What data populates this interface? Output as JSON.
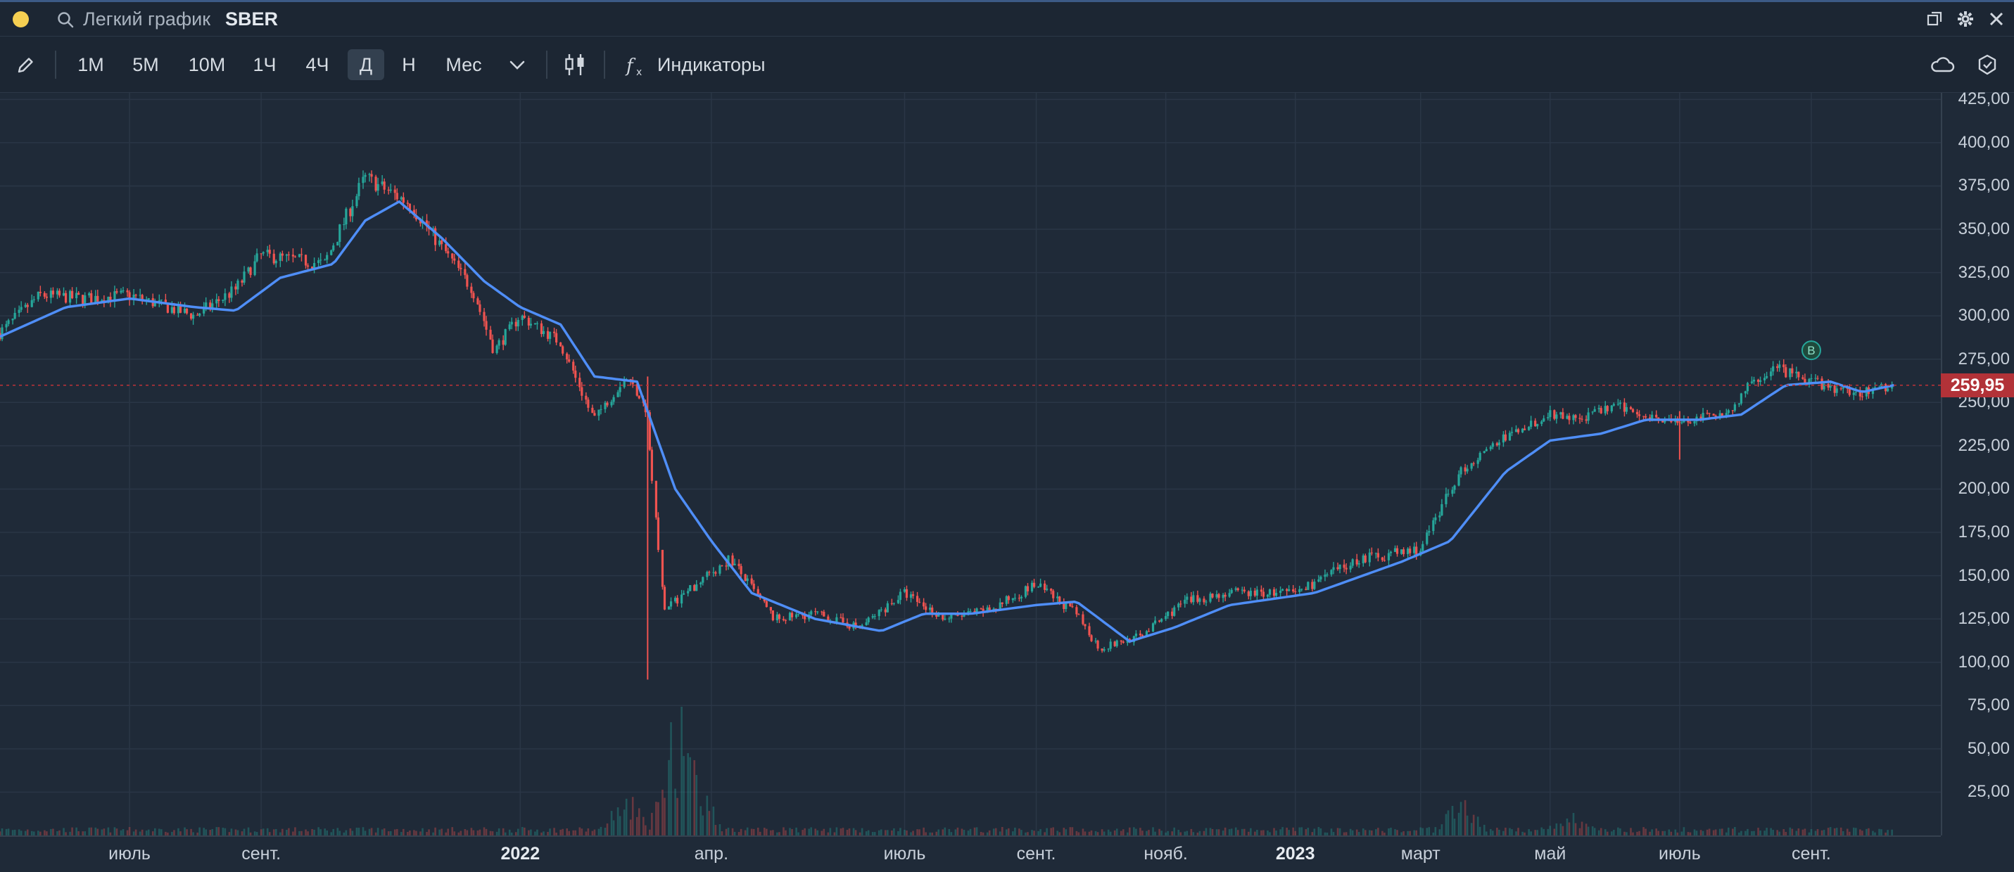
{
  "titlebar": {
    "search_text": "Легкий график",
    "ticker": "SBER",
    "icons": [
      "popout-icon",
      "gear-icon",
      "close-icon"
    ]
  },
  "toolbar": {
    "timeframes": [
      "1М",
      "5М",
      "10М",
      "1Ч",
      "4Ч",
      "Д",
      "Н",
      "Мес"
    ],
    "active_timeframe": "Д",
    "indicators_label": "Индикаторы"
  },
  "colors": {
    "background": "#1f2a38",
    "grid": "#2a3646",
    "up": "#26a69a",
    "down": "#ef5350",
    "ma": "#4f8ef7",
    "last_price": "#b23238"
  },
  "chart_data": {
    "type": "candlestick",
    "ticker": "SBER",
    "ylim": [
      0,
      430
    ],
    "y_ticks": [
      "425,00",
      "400,00",
      "375,00",
      "350,00",
      "325,00",
      "300,00",
      "275,00",
      "250,00",
      "225,00",
      "200,00",
      "175,00",
      "150,00",
      "125,00",
      "100,00",
      "75,00",
      "50,00",
      "25,00"
    ],
    "x_ticks": [
      {
        "label": "июль",
        "date": "2021-07-01",
        "bold": false
      },
      {
        "label": "сент.",
        "date": "2021-09-01",
        "bold": false
      },
      {
        "label": "2022",
        "date": "2022-01-01",
        "bold": true
      },
      {
        "label": "апр.",
        "date": "2022-04-01",
        "bold": false
      },
      {
        "label": "июль",
        "date": "2022-07-01",
        "bold": false
      },
      {
        "label": "сент.",
        "date": "2022-09-01",
        "bold": false
      },
      {
        "label": "нояб.",
        "date": "2022-11-01",
        "bold": false
      },
      {
        "label": "2023",
        "date": "2023-01-01",
        "bold": true
      },
      {
        "label": "март",
        "date": "2023-03-01",
        "bold": false
      },
      {
        "label": "май",
        "date": "2023-05-01",
        "bold": false
      },
      {
        "label": "июль",
        "date": "2023-07-01",
        "bold": false
      },
      {
        "label": "сент.",
        "date": "2023-09-01",
        "bold": false
      }
    ],
    "last_price": 259.95,
    "last_price_label": "259,95",
    "marker": {
      "label": "B",
      "date": "2023-09-01",
      "price": 272
    },
    "price_path": [
      [
        "2021-05-01",
        290
      ],
      [
        "2021-05-20",
        312
      ],
      [
        "2021-06-10",
        310
      ],
      [
        "2021-07-01",
        312
      ],
      [
        "2021-08-01",
        300
      ],
      [
        "2021-08-20",
        315
      ],
      [
        "2021-09-01",
        335
      ],
      [
        "2021-10-01",
        330
      ],
      [
        "2021-10-20",
        380
      ],
      [
        "2021-11-10",
        365
      ],
      [
        "2021-11-25",
        340
      ],
      [
        "2021-12-10",
        315
      ],
      [
        "2021-12-20",
        280
      ],
      [
        "2022-01-01",
        300
      ],
      [
        "2022-01-20",
        285
      ],
      [
        "2022-02-05",
        240
      ],
      [
        "2022-02-20",
        265
      ],
      [
        "2022-03-01",
        250
      ],
      [
        "2022-03-10",
        130
      ],
      [
        "2022-03-25",
        145
      ],
      [
        "2022-04-10",
        160
      ],
      [
        "2022-05-01",
        125
      ],
      [
        "2022-05-20",
        128
      ],
      [
        "2022-06-10",
        120
      ],
      [
        "2022-07-01",
        140
      ],
      [
        "2022-07-20",
        125
      ],
      [
        "2022-08-10",
        130
      ],
      [
        "2022-09-01",
        145
      ],
      [
        "2022-09-20",
        128
      ],
      [
        "2022-10-01",
        108
      ],
      [
        "2022-10-20",
        115
      ],
      [
        "2022-11-10",
        135
      ],
      [
        "2022-12-01",
        140
      ],
      [
        "2023-01-01",
        140
      ],
      [
        "2023-02-01",
        160
      ],
      [
        "2023-03-01",
        165
      ],
      [
        "2023-03-20",
        210
      ],
      [
        "2023-04-10",
        230
      ],
      [
        "2023-05-01",
        243
      ],
      [
        "2023-05-15",
        240
      ],
      [
        "2023-06-01",
        248
      ],
      [
        "2023-07-01",
        238
      ],
      [
        "2023-07-25",
        245
      ],
      [
        "2023-08-05",
        262
      ],
      [
        "2023-08-15",
        270
      ],
      [
        "2023-09-01",
        262
      ],
      [
        "2023-09-20",
        255
      ],
      [
        "2023-10-10",
        260
      ]
    ],
    "ma_path": [
      [
        "2021-05-01",
        288
      ],
      [
        "2021-06-01",
        305
      ],
      [
        "2021-07-01",
        310
      ],
      [
        "2021-08-01",
        305
      ],
      [
        "2021-08-20",
        303
      ],
      [
        "2021-09-10",
        322
      ],
      [
        "2021-10-05",
        330
      ],
      [
        "2021-10-20",
        355
      ],
      [
        "2021-11-05",
        366
      ],
      [
        "2021-11-25",
        345
      ],
      [
        "2021-12-15",
        320
      ],
      [
        "2022-01-01",
        305
      ],
      [
        "2022-01-20",
        295
      ],
      [
        "2022-02-05",
        265
      ],
      [
        "2022-02-25",
        262
      ],
      [
        "2022-03-15",
        200
      ],
      [
        "2022-04-01",
        170
      ],
      [
        "2022-04-20",
        140
      ],
      [
        "2022-05-20",
        125
      ],
      [
        "2022-06-20",
        118
      ],
      [
        "2022-07-10",
        128
      ],
      [
        "2022-08-01",
        128
      ],
      [
        "2022-09-01",
        133
      ],
      [
        "2022-09-20",
        135
      ],
      [
        "2022-10-15",
        112
      ],
      [
        "2022-11-05",
        120
      ],
      [
        "2022-12-01",
        133
      ],
      [
        "2023-01-10",
        140
      ],
      [
        "2023-02-20",
        158
      ],
      [
        "2023-03-15",
        170
      ],
      [
        "2023-04-10",
        210
      ],
      [
        "2023-05-01",
        228
      ],
      [
        "2023-05-25",
        232
      ],
      [
        "2023-06-15",
        240
      ],
      [
        "2023-07-10",
        240
      ],
      [
        "2023-07-30",
        243
      ],
      [
        "2023-08-20",
        260
      ],
      [
        "2023-09-10",
        262
      ],
      [
        "2023-09-25",
        256
      ],
      [
        "2023-10-10",
        260
      ]
    ],
    "volume_spikes": [
      [
        "2022-02-20",
        0.35
      ],
      [
        "2022-03-15",
        1.0
      ],
      [
        "2022-03-25",
        0.5
      ],
      [
        "2023-03-20",
        0.3
      ],
      [
        "2023-05-10",
        0.2
      ]
    ]
  }
}
